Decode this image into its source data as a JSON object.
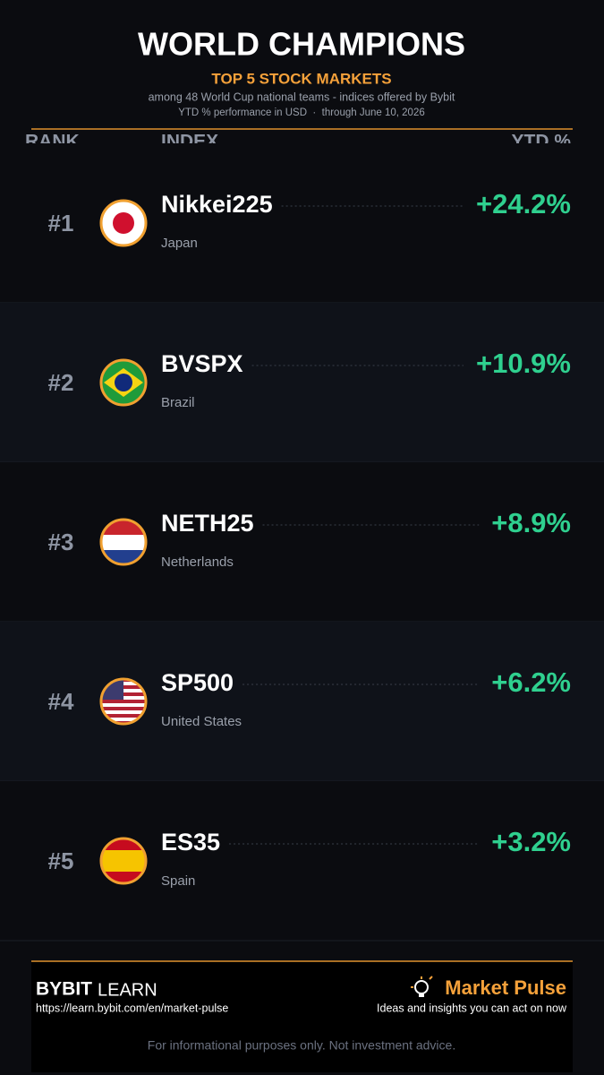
{
  "header": {
    "title": "WORLD CHAMPIONS",
    "subtitle": "TOP 5 STOCK MARKETS",
    "description": "among 48 World Cup national teams - indices offered by Bybit",
    "note": "YTD % performance in USD  ·  through June 10, 2026"
  },
  "table": {
    "columns": [
      "RANK",
      "INDEX",
      "YTD %"
    ],
    "rows": [
      {
        "rank": "#1",
        "index": "Nikkei225",
        "country": "Japan",
        "ytd": "+24.2%",
        "flag": "japan"
      },
      {
        "rank": "#2",
        "index": "BVSPX",
        "country": "Brazil",
        "ytd": "+10.9%",
        "flag": "brazil"
      },
      {
        "rank": "#3",
        "index": "NETH25",
        "country": "Netherlands",
        "ytd": "+8.9%",
        "flag": "netherlands"
      },
      {
        "rank": "#4",
        "index": "SP500",
        "country": "United States",
        "ytd": "+6.2%",
        "flag": "usa"
      },
      {
        "rank": "#5",
        "index": "ES35",
        "country": "Spain",
        "ytd": "+3.2%",
        "flag": "spain"
      }
    ]
  },
  "footer": {
    "brand": "BYBIT",
    "brand_suffix": "LEARN",
    "url": "https://learn.bybit.com/en/market-pulse",
    "product": "Market Pulse",
    "tagline": "Ideas and insights you can act on now",
    "disclaimer": "For informational purposes only. Not investment advice."
  }
}
